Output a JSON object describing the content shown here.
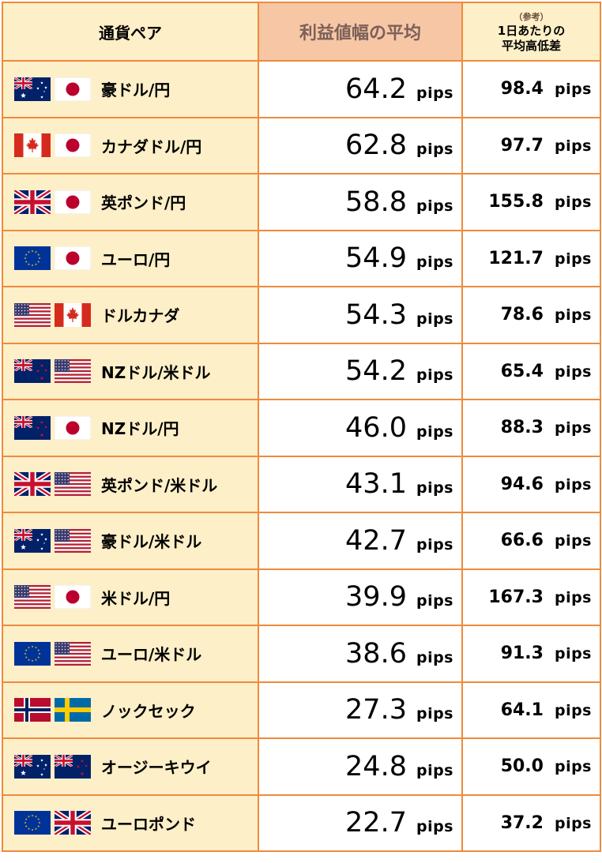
{
  "header": {
    "pair": "通貨ペア",
    "profit": "利益値幅の平均",
    "ref_note": "（参考）",
    "ref_line1": "1日あたりの",
    "ref_line2": "平均高低差"
  },
  "unit": "pips",
  "rows": [
    {
      "name": "豪ドル/円",
      "flags": [
        "au",
        "jp"
      ],
      "profit": "64.2",
      "range": "98.4"
    },
    {
      "name": "カナダドル/円",
      "flags": [
        "ca",
        "jp"
      ],
      "profit": "62.8",
      "range": "97.7"
    },
    {
      "name": "英ポンド/円",
      "flags": [
        "gb",
        "jp"
      ],
      "profit": "58.8",
      "range": "155.8"
    },
    {
      "name": "ユーロ/円",
      "flags": [
        "eu",
        "jp"
      ],
      "profit": "54.9",
      "range": "121.7"
    },
    {
      "name": "ドルカナダ",
      "flags": [
        "us",
        "ca"
      ],
      "profit": "54.3",
      "range": "78.6"
    },
    {
      "name": "NZドル/米ドル",
      "flags": [
        "nz",
        "us"
      ],
      "profit": "54.2",
      "range": "65.4"
    },
    {
      "name": "NZドル/円",
      "flags": [
        "nz",
        "jp"
      ],
      "profit": "46.0",
      "range": "88.3"
    },
    {
      "name": "英ポンド/米ドル",
      "flags": [
        "gb",
        "us"
      ],
      "profit": "43.1",
      "range": "94.6"
    },
    {
      "name": "豪ドル/米ドル",
      "flags": [
        "au",
        "us"
      ],
      "profit": "42.7",
      "range": "66.6"
    },
    {
      "name": "米ドル/円",
      "flags": [
        "us",
        "jp"
      ],
      "profit": "39.9",
      "range": "167.3"
    },
    {
      "name": "ユーロ/米ドル",
      "flags": [
        "eu",
        "us"
      ],
      "profit": "38.6",
      "range": "91.3"
    },
    {
      "name": "ノックセック",
      "flags": [
        "no",
        "se"
      ],
      "profit": "27.3",
      "range": "64.1"
    },
    {
      "name": "オージーキウイ",
      "flags": [
        "au",
        "nz"
      ],
      "profit": "24.8",
      "range": "50.0"
    },
    {
      "name": "ユーロポンド",
      "flags": [
        "eu",
        "gb"
      ],
      "profit": "22.7",
      "range": "37.2"
    }
  ],
  "colors": {
    "border": "#ee8b3c",
    "header_bg": "#fdefc8",
    "profit_header_bg": "#f7c6a5"
  }
}
